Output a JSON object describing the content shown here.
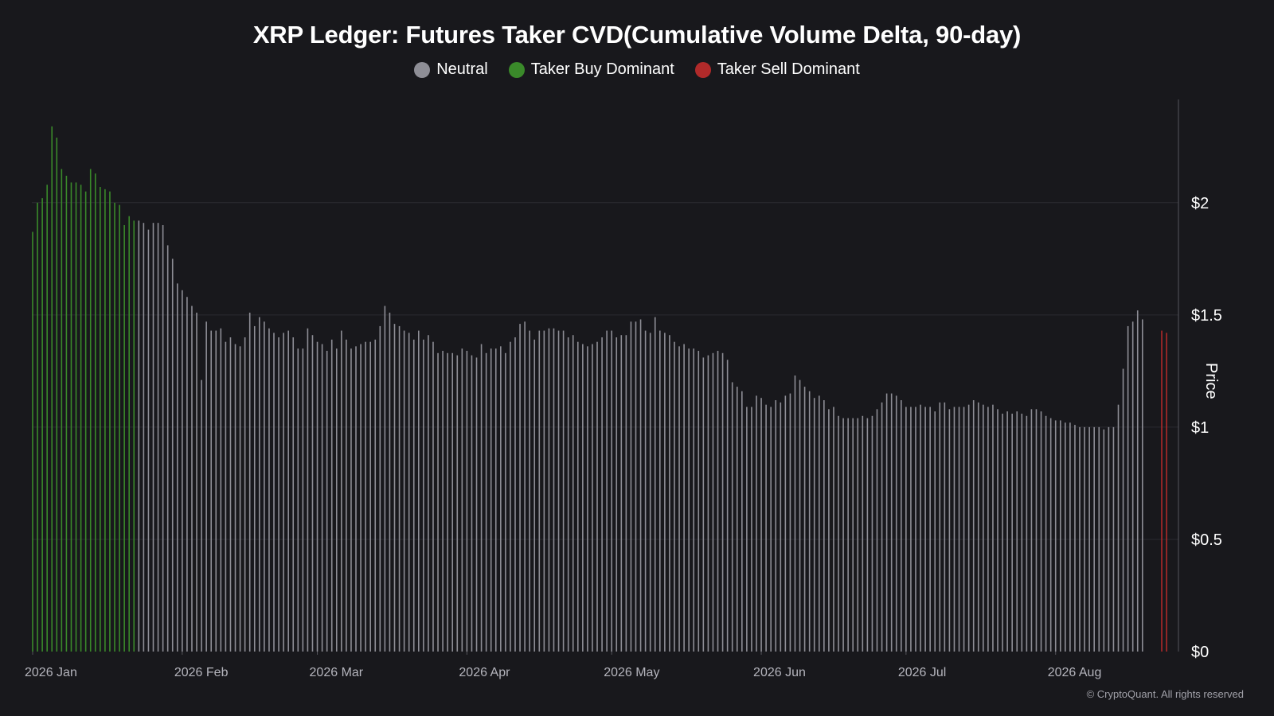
{
  "colors": {
    "background": "#18181c",
    "neutral": "#8e8e96",
    "buy": "#3a8a2a",
    "sell": "#b02a2a",
    "grid": "#2a2a30",
    "axis": "#55555c"
  },
  "copyright": "© CryptoQuant. All rights reserved",
  "chart_data": {
    "type": "bar",
    "title": "XRP Ledger: Futures Taker CVD(Cumulative Volume Delta, 90-day)",
    "legend": [
      {
        "name": "Neutral",
        "color": "#8e8e96"
      },
      {
        "name": "Taker Buy Dominant",
        "color": "#3a8a2a"
      },
      {
        "name": "Taker Sell Dominant",
        "color": "#b02a2a"
      }
    ],
    "legend_position": "top-center",
    "ylabel": "Price",
    "y_axis_side": "right",
    "ylim": [
      0,
      2.46
    ],
    "y_ticks": [
      {
        "value": 0,
        "label": "$0"
      },
      {
        "value": 0.5,
        "label": "$0.5"
      },
      {
        "value": 1,
        "label": "$1"
      },
      {
        "value": 1.5,
        "label": "$1.5"
      },
      {
        "value": 2,
        "label": "$2"
      }
    ],
    "x_start": "2026-01-01",
    "x_ticks": [
      {
        "date": "2026-01-01",
        "label": "2026 Jan"
      },
      {
        "date": "2026-02-01",
        "label": "2026 Feb"
      },
      {
        "date": "2026-03-01",
        "label": "2026 Mar"
      },
      {
        "date": "2026-04-01",
        "label": "2026 Apr"
      },
      {
        "date": "2026-05-01",
        "label": "2026 May"
      },
      {
        "date": "2026-06-01",
        "label": "2026 Jun"
      },
      {
        "date": "2026-07-01",
        "label": "2026 Jul"
      },
      {
        "date": "2026-08-01",
        "label": "2026 Aug"
      }
    ],
    "grid": true,
    "series": [
      {
        "name": "Taker Buy Dominant",
        "start": "2026-01-01",
        "values": [
          1.87,
          2.0,
          2.02,
          2.08,
          2.34,
          2.29,
          2.15,
          2.12,
          2.09,
          2.09,
          2.08,
          2.05,
          2.15,
          2.13,
          2.07,
          2.06,
          2.05,
          2.0,
          1.99,
          1.9,
          1.94,
          1.92
        ]
      },
      {
        "name": "Neutral",
        "start": "2026-01-23",
        "values": [
          1.92,
          1.91,
          1.88,
          1.91,
          1.91,
          1.9,
          1.81,
          1.75,
          1.64,
          1.61,
          1.58,
          1.54,
          1.51,
          1.21,
          1.47,
          1.43,
          1.43,
          1.44,
          1.38,
          1.4,
          1.37,
          1.36,
          1.4,
          1.51,
          1.45,
          1.49,
          1.47,
          1.44,
          1.42,
          1.4,
          1.42,
          1.43,
          1.4,
          1.35,
          1.35,
          1.44,
          1.41,
          1.38,
          1.37,
          1.34,
          1.39,
          1.35,
          1.43,
          1.39,
          1.35,
          1.36,
          1.37,
          1.38,
          1.38,
          1.39,
          1.45,
          1.54,
          1.51,
          1.46,
          1.45,
          1.43,
          1.42,
          1.39,
          1.43,
          1.39,
          1.41,
          1.38,
          1.33,
          1.34,
          1.33,
          1.33,
          1.32,
          1.35,
          1.34,
          1.32,
          1.31,
          1.37,
          1.33,
          1.35,
          1.35,
          1.36,
          1.33,
          1.38,
          1.4,
          1.46,
          1.47,
          1.43,
          1.39,
          1.43,
          1.43,
          1.44,
          1.44,
          1.43,
          1.43,
          1.4,
          1.41,
          1.38,
          1.37,
          1.36,
          1.37,
          1.38,
          1.4,
          1.43,
          1.43,
          1.4,
          1.41,
          1.41,
          1.47,
          1.47,
          1.48,
          1.43,
          1.42,
          1.49,
          1.43,
          1.42,
          1.41,
          1.38,
          1.36,
          1.37,
          1.35,
          1.35,
          1.34,
          1.31,
          1.32,
          1.33,
          1.34,
          1.33,
          1.3,
          1.2,
          1.18,
          1.16,
          1.09,
          1.09,
          1.14,
          1.13,
          1.1,
          1.09,
          1.12,
          1.11,
          1.14,
          1.15,
          1.23,
          1.21,
          1.18,
          1.16,
          1.13,
          1.14,
          1.12,
          1.08,
          1.09,
          1.05,
          1.04,
          1.04,
          1.04,
          1.04,
          1.05,
          1.04,
          1.05,
          1.08,
          1.11,
          1.15,
          1.15,
          1.14,
          1.12,
          1.09,
          1.09,
          1.09,
          1.1,
          1.09,
          1.09,
          1.07,
          1.11,
          1.11,
          1.08,
          1.09,
          1.09,
          1.09,
          1.1,
          1.12,
          1.11,
          1.1,
          1.09,
          1.1,
          1.08,
          1.06,
          1.07,
          1.06,
          1.07,
          1.06,
          1.05,
          1.08,
          1.08,
          1.07,
          1.05,
          1.04,
          1.03,
          1.03,
          1.02,
          1.02,
          1.01,
          1.0,
          1.0,
          1.0,
          1.0,
          1.0,
          0.99,
          1.0,
          1.0,
          1.1,
          1.26,
          1.45,
          1.47,
          1.52,
          1.48
        ]
      },
      {
        "name": "Taker Sell Dominant",
        "start": "2026-08-23",
        "values": [
          1.43,
          1.42
        ]
      }
    ]
  }
}
